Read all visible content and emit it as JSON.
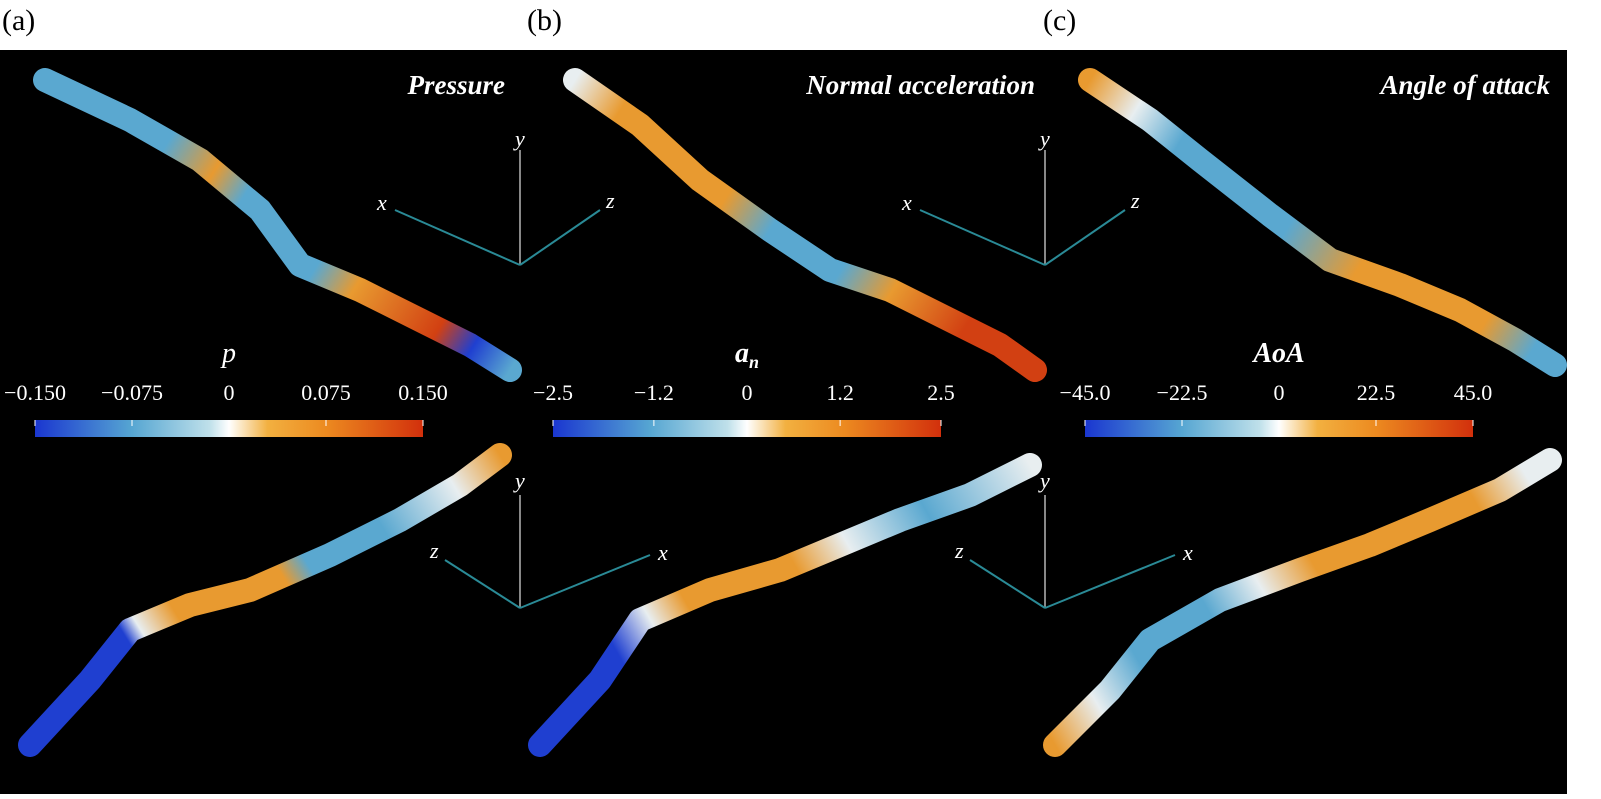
{
  "panels": [
    {
      "label": "(a)",
      "title": "Pressure",
      "colorbar": {
        "label": "p",
        "subscript": null,
        "range": [
          -0.15,
          0.15
        ],
        "ticks": [
          {
            "value": -0.15,
            "label": "−0.150"
          },
          {
            "value": -0.075,
            "label": "−0.075"
          },
          0,
          0.075,
          {
            "value": 0.15,
            "label": "0.150"
          }
        ]
      }
    },
    {
      "label": "(b)",
      "title": "Normal acceleration",
      "colorbar": {
        "label": "a",
        "subscript": "n",
        "range": [
          -2.5,
          2.5
        ],
        "ticks": [
          {
            "value": -2.5,
            "label": "−2.5"
          },
          {
            "value": -1.2,
            "label": "−1.2"
          },
          0,
          1.2,
          2.5
        ]
      }
    },
    {
      "label": "(c)",
      "title": "Angle of attack",
      "colorbar": {
        "label": "AoA",
        "subscript": null,
        "range": [
          -45,
          45
        ],
        "ticks": [
          {
            "value": -45,
            "label": "−45.0"
          },
          {
            "value": -22.5,
            "label": "−22.5"
          },
          0,
          22.5,
          {
            "value": 45,
            "label": "45.0"
          }
        ]
      }
    }
  ],
  "axis_labels": {
    "x": "x",
    "y": "y",
    "z": "z"
  }
}
